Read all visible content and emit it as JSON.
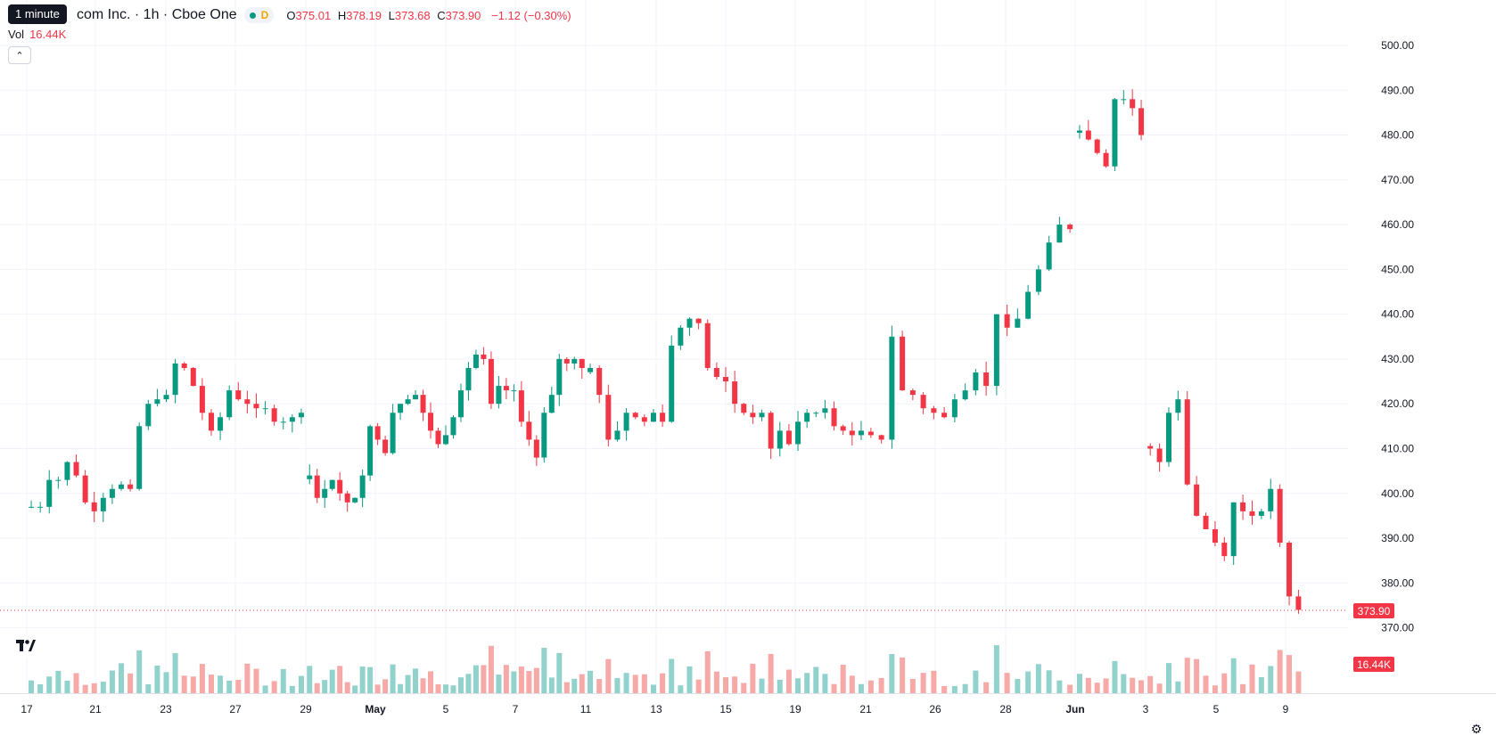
{
  "legend": {
    "tooltip": "1 minute",
    "title": "com Inc. · 1h · Cboe One",
    "o_label": "O",
    "o": "375.01",
    "h_label": "H",
    "h": "378.19",
    "l_label": "L",
    "l": "373.68",
    "c_label": "C",
    "c": "373.90",
    "change": "−1.12 (−0.30%)",
    "market_status_letter": "D"
  },
  "volume": {
    "label": "Vol",
    "value": "16.44K"
  },
  "icons": {
    "collapse": "chevron-up-icon",
    "logo": "tradingview-logo-icon",
    "settings": "gear-icon"
  },
  "colors": {
    "up": "#089981",
    "down": "#f23645",
    "vol_up": "#92d2cc",
    "vol_down": "#f7a9a7",
    "grid": "#f0f3fa"
  },
  "chart_data": {
    "type": "candlestick",
    "y_axis_ticks": [
      500,
      490,
      480,
      470,
      460,
      450,
      440,
      430,
      420,
      410,
      400,
      390,
      380,
      370
    ],
    "y_axis_tick_labels": [
      "500.00",
      "490.00",
      "480.00",
      "470.00",
      "460.00",
      "450.00",
      "440.00",
      "430.00",
      "420.00",
      "410.00",
      "400.00",
      "390.00",
      "380.00",
      "370.00"
    ],
    "x_axis_tick_labels": [
      "17",
      "21",
      "23",
      "27",
      "29",
      "May",
      "5",
      "7",
      "11",
      "13",
      "15",
      "19",
      "21",
      "26",
      "28",
      "Jun",
      "3",
      "5",
      "9"
    ],
    "last_price_label": "373.90",
    "volume_label": "16.44K",
    "ylim": [
      360,
      506
    ],
    "segments": [
      {
        "from_tick": 0,
        "to_tick": 4,
        "price": [
          397,
          397,
          403,
          403,
          407,
          404,
          398,
          396,
          399,
          401,
          402,
          401,
          415,
          420,
          421,
          422,
          429,
          428,
          424,
          418,
          414,
          417,
          423,
          421,
          420,
          419,
          419,
          416,
          416,
          417,
          418
        ]
      },
      {
        "from_tick": 4,
        "to_tick": 8,
        "price": [
          404,
          399,
          401,
          403,
          400,
          398,
          399,
          404,
          415,
          412,
          409,
          418,
          420,
          421,
          422,
          418,
          414,
          411,
          413,
          417,
          423,
          428,
          431,
          430,
          420,
          424,
          423,
          423,
          416,
          412,
          408,
          418,
          422,
          430,
          429,
          430,
          428
        ]
      },
      {
        "from_tick": 8,
        "to_tick": 12,
        "price": [
          428,
          422,
          412,
          414,
          418,
          417,
          416,
          418,
          416,
          433,
          437,
          439,
          438,
          428,
          426,
          425,
          420,
          418,
          417,
          418,
          410,
          414,
          411,
          416,
          418,
          418,
          419,
          415,
          414,
          413,
          414
        ]
      },
      {
        "from_tick": 12,
        "to_tick": 15,
        "price": [
          413,
          412,
          435,
          423,
          422,
          419,
          418,
          417,
          421,
          423,
          427,
          424,
          440,
          437,
          439,
          445,
          450,
          456,
          460,
          459
        ]
      },
      {
        "from_tick": 15,
        "to_tick": 16,
        "price": [
          481,
          479,
          476,
          473,
          488,
          488,
          486,
          480
        ]
      },
      {
        "from_tick": 16,
        "to_tick": 18.25,
        "price": [
          410,
          407,
          418,
          421,
          402,
          395,
          392,
          389,
          386,
          398,
          396,
          395,
          396,
          401,
          389,
          377,
          374
        ]
      }
    ]
  }
}
